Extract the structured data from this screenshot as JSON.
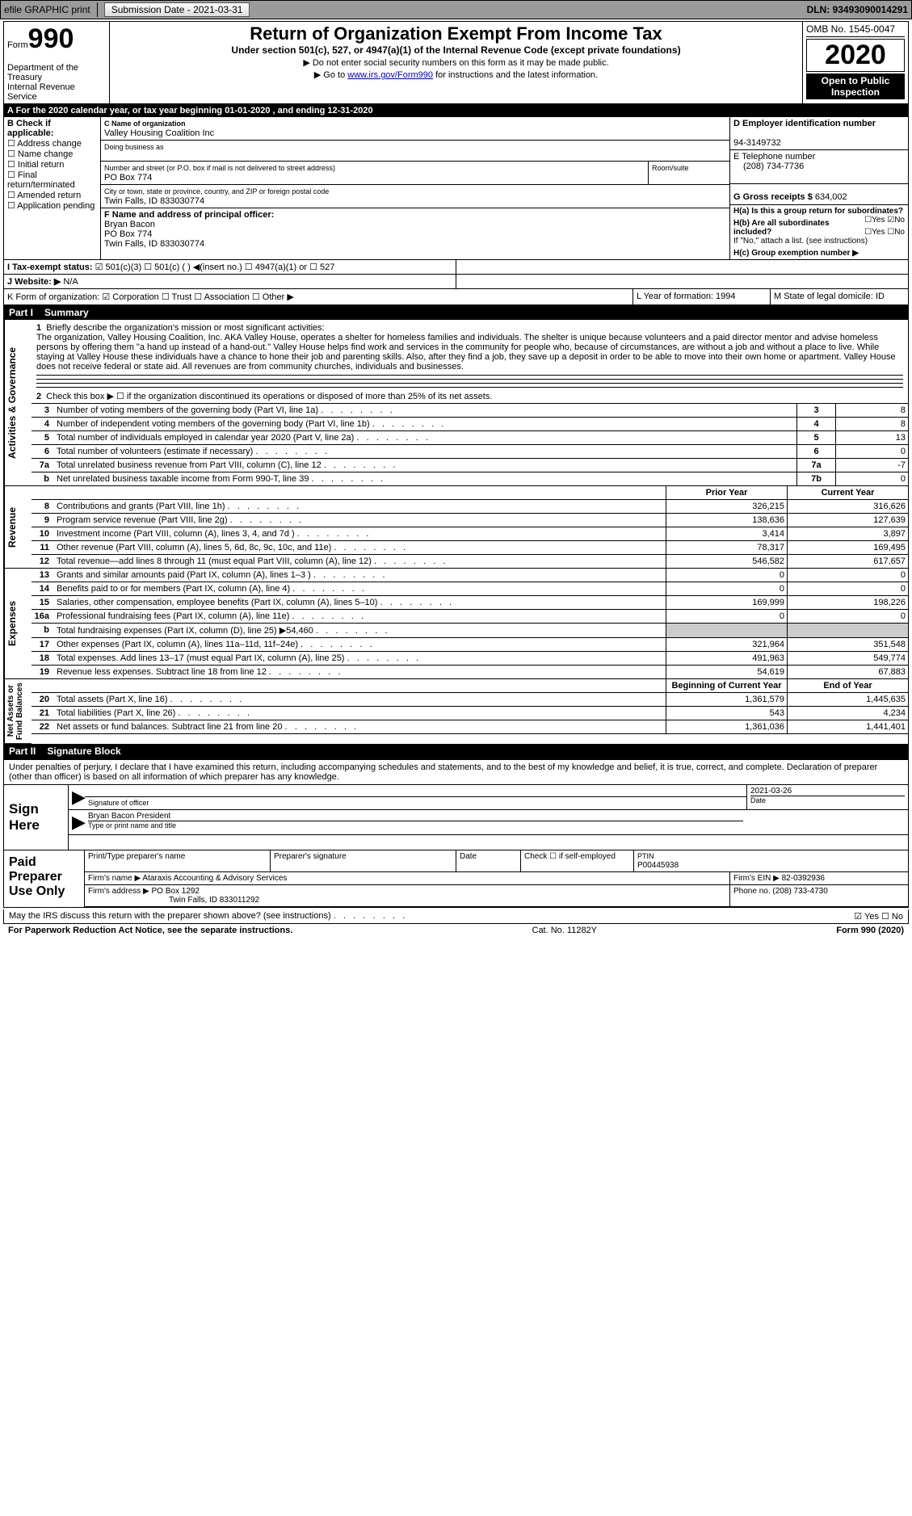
{
  "topbar": {
    "efile": "efile GRAPHIC print",
    "submission": "Submission Date - 2021-03-31",
    "dln": "DLN: 93493090014291"
  },
  "header": {
    "form_prefix": "Form",
    "form_number": "990",
    "dept": "Department of the Treasury\nInternal Revenue Service",
    "title": "Return of Organization Exempt From Income Tax",
    "subtitle": "Under section 501(c), 527, or 4947(a)(1) of the Internal Revenue Code (except private foundations)",
    "note1": "▶ Do not enter social security numbers on this form as it may be made public.",
    "note2_prefix": "▶ Go to ",
    "note2_link": "www.irs.gov/Form990",
    "note2_suffix": " for instructions and the latest information.",
    "omb": "OMB No. 1545-0047",
    "year": "2020",
    "open": "Open to Public Inspection"
  },
  "rowA": "A  For the 2020 calendar year, or tax year beginning 01-01-2020   , and ending 12-31-2020",
  "boxB": {
    "title": "B Check if applicable:",
    "items": [
      "☐ Address change",
      "☐ Name change",
      "☐ Initial return",
      "☐ Final return/terminated",
      "☐ Amended return",
      "☐ Application pending"
    ]
  },
  "boxC": {
    "c_label": "C Name of organization",
    "org_name": "Valley Housing Coalition Inc",
    "dba_label": "Doing business as",
    "street_label": "Number and street (or P.O. box if mail is not delivered to street address)",
    "room_label": "Room/suite",
    "street": "PO Box 774",
    "city_label": "City or town, state or province, country, and ZIP or foreign postal code",
    "city": "Twin Falls, ID  833030774",
    "f_label": "F  Name and address of principal officer:",
    "f_name": "Bryan Bacon",
    "f_street": "PO Box 774",
    "f_city": "Twin Falls, ID  833030774"
  },
  "boxDEG": {
    "d_label": "D Employer identification number",
    "ein": "94-3149732",
    "e_label": "E Telephone number",
    "phone": "(208) 734-7736",
    "g_label": "G Gross receipts $",
    "gross": "634,002"
  },
  "boxH": {
    "ha": "H(a)  Is this a group return for subordinates?",
    "ha_ans": "☐Yes  ☑No",
    "hb": "H(b)  Are all subordinates included?",
    "hb_ans": "☐Yes  ☐No",
    "hb_note": "If \"No,\" attach a list. (see instructions)",
    "hc": "H(c)  Group exemption number ▶"
  },
  "rowI": {
    "label": "I   Tax-exempt status:",
    "opts": "☑ 501(c)(3)    ☐  501(c) (  ) ◀(insert no.)    ☐  4947(a)(1) or   ☐ 527"
  },
  "rowJ": {
    "label": "J   Website: ▶",
    "val": "N/A"
  },
  "rowK": {
    "label": "K Form of organization:  ☑ Corporation  ☐ Trust  ☐ Association  ☐ Other ▶",
    "l": "L Year of formation: 1994",
    "m": "M State of legal domicile: ID"
  },
  "part1": {
    "label": "Part I",
    "title": "Summary"
  },
  "desc": {
    "line1_num": "1",
    "line1": "Briefly describe the organization's mission or most significant activities:",
    "body": "The organization, Valley Housing Coalition, Inc. AKA Valley House, operates a shelter for homeless families and individuals. The shelter is unique because volunteers and a paid director mentor and advise homeless persons by offering them \"a hand up instead of a hand-out.\" Valley House helps find work and services in the community for people who, because of circumstances, are without a job and without a place to live. While staying at Valley House these individuals have a chance to hone their job and parenting skills. Also, after they find a job, they save up a deposit in order to be able to move into their own home or apartment. Valley House does not receive federal or state aid. All revenues are from community churches, individuals and businesses.",
    "line2": "Check this box ▶ ☐  if the organization discontinued its operations or disposed of more than 25% of its net assets."
  },
  "lines_top": [
    {
      "n": "3",
      "t": "Number of voting members of the governing body (Part VI, line 1a)",
      "box": "3",
      "v": "8"
    },
    {
      "n": "4",
      "t": "Number of independent voting members of the governing body (Part VI, line 1b)",
      "box": "4",
      "v": "8"
    },
    {
      "n": "5",
      "t": "Total number of individuals employed in calendar year 2020 (Part V, line 2a)",
      "box": "5",
      "v": "13"
    },
    {
      "n": "6",
      "t": "Total number of volunteers (estimate if necessary)",
      "box": "6",
      "v": "0"
    },
    {
      "n": "7a",
      "t": "Total unrelated business revenue from Part VIII, column (C), line 12",
      "box": "7a",
      "v": "-7"
    },
    {
      "n": "b",
      "t": "Net unrelated business taxable income from Form 990-T, line 39",
      "box": "7b",
      "v": "0"
    }
  ],
  "money_hdr": {
    "prior": "Prior Year",
    "curr": "Current Year"
  },
  "revenue": [
    {
      "n": "8",
      "t": "Contributions and grants (Part VIII, line 1h)",
      "p": "326,215",
      "c": "316,626"
    },
    {
      "n": "9",
      "t": "Program service revenue (Part VIII, line 2g)",
      "p": "138,636",
      "c": "127,639"
    },
    {
      "n": "10",
      "t": "Investment income (Part VIII, column (A), lines 3, 4, and 7d )",
      "p": "3,414",
      "c": "3,897"
    },
    {
      "n": "11",
      "t": "Other revenue (Part VIII, column (A), lines 5, 6d, 8c, 9c, 10c, and 11e)",
      "p": "78,317",
      "c": "169,495"
    },
    {
      "n": "12",
      "t": "Total revenue—add lines 8 through 11 (must equal Part VIII, column (A), line 12)",
      "p": "546,582",
      "c": "617,657"
    }
  ],
  "expenses": [
    {
      "n": "13",
      "t": "Grants and similar amounts paid (Part IX, column (A), lines 1–3 )",
      "p": "0",
      "c": "0"
    },
    {
      "n": "14",
      "t": "Benefits paid to or for members (Part IX, column (A), line 4)",
      "p": "0",
      "c": "0"
    },
    {
      "n": "15",
      "t": "Salaries, other compensation, employee benefits (Part IX, column (A), lines 5–10)",
      "p": "169,999",
      "c": "198,226"
    },
    {
      "n": "16a",
      "t": "Professional fundraising fees (Part IX, column (A), line 11e)",
      "p": "0",
      "c": "0"
    },
    {
      "n": "b",
      "t": "Total fundraising expenses (Part IX, column (D), line 25) ▶54,460",
      "p": "grey",
      "c": "grey"
    },
    {
      "n": "17",
      "t": "Other expenses (Part IX, column (A), lines 11a–11d, 11f–24e)",
      "p": "321,964",
      "c": "351,548"
    },
    {
      "n": "18",
      "t": "Total expenses. Add lines 13–17 (must equal Part IX, column (A), line 25)",
      "p": "491,963",
      "c": "549,774"
    },
    {
      "n": "19",
      "t": "Revenue less expenses. Subtract line 18 from line 12",
      "p": "54,619",
      "c": "67,883"
    }
  ],
  "net_hdr": {
    "beg": "Beginning of Current Year",
    "end": "End of Year"
  },
  "netassets": [
    {
      "n": "20",
      "t": "Total assets (Part X, line 16)",
      "p": "1,361,579",
      "c": "1,445,635"
    },
    {
      "n": "21",
      "t": "Total liabilities (Part X, line 26)",
      "p": "543",
      "c": "4,234"
    },
    {
      "n": "22",
      "t": "Net assets or fund balances. Subtract line 21 from line 20",
      "p": "1,361,036",
      "c": "1,441,401"
    }
  ],
  "vlabels": {
    "gov": "Activities & Governance",
    "rev": "Revenue",
    "exp": "Expenses",
    "net": "Net Assets or\nFund Balances"
  },
  "part2": {
    "label": "Part II",
    "title": "Signature Block"
  },
  "sig": {
    "decl": "Under penalties of perjury, I declare that I have examined this return, including accompanying schedules and statements, and to the best of my knowledge and belief, it is true, correct, and complete. Declaration of preparer (other than officer) is based on all information of which preparer has any knowledge.",
    "sign_here": "Sign Here",
    "sig_label": "Signature of officer",
    "date": "2021-03-26",
    "date_label": "Date",
    "name": "Bryan Bacon  President",
    "name_label": "Type or print name and title"
  },
  "prep": {
    "title": "Paid Preparer Use Only",
    "h1": "Print/Type preparer's name",
    "h2": "Preparer's signature",
    "h3": "Date",
    "h4": "Check ☐ if self-employed",
    "h5_label": "PTIN",
    "h5": "P00445938",
    "firm_label": "Firm's name      ▶",
    "firm": "Ataraxis Accounting & Advisory Services",
    "ein_label": "Firm's EIN ▶",
    "ein": "82-0392936",
    "addr_label": "Firm's address ▶",
    "addr1": "PO Box 1292",
    "addr2": "Twin Falls, ID  833011292",
    "phone_label": "Phone no.",
    "phone": "(208) 733-4730"
  },
  "foot": {
    "discuss": "May the IRS discuss this return with the preparer shown above? (see instructions)",
    "ans": "☑ Yes   ☐ No",
    "paperwork": "For Paperwork Reduction Act Notice, see the separate instructions.",
    "cat": "Cat. No. 11282Y",
    "form": "Form 990 (2020)"
  }
}
